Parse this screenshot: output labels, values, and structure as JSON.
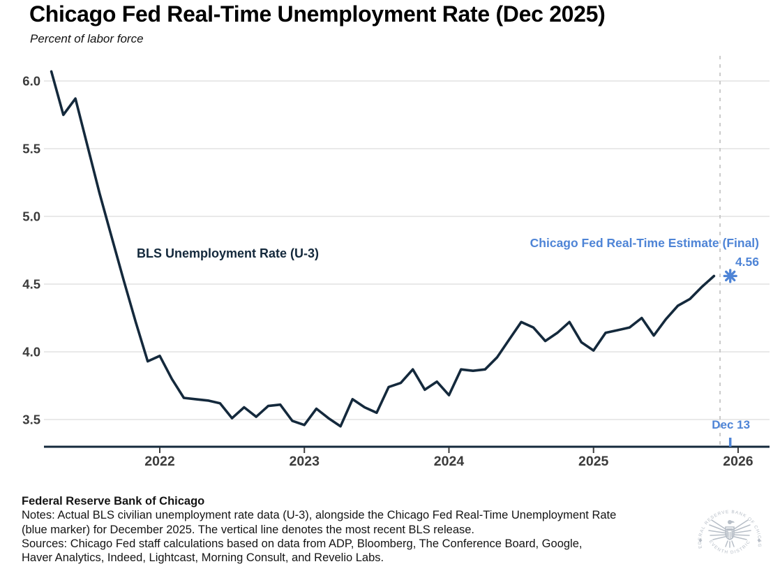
{
  "header": {
    "title": "Chicago Fed Real-Time Unemployment Rate (Dec 2025)",
    "subtitle": "Percent of labor force"
  },
  "chart_data": {
    "type": "line",
    "title": "Chicago Fed Real-Time Unemployment Rate (Dec 2025)",
    "subtitle": "Percent of labor force",
    "ylabel": "Percent of labor force",
    "ylim": [
      3.3,
      6.15
    ],
    "grid": "horizontal",
    "y_ticks": [
      "3.5",
      "4.0",
      "4.5",
      "5.0",
      "5.5",
      "6.0"
    ],
    "x_ticks": [
      {
        "label": "2022",
        "month_index": 9
      },
      {
        "label": "2023",
        "month_index": 21
      },
      {
        "label": "2024",
        "month_index": 33
      },
      {
        "label": "2025",
        "month_index": 45
      },
      {
        "label": "2026",
        "month_index": 57
      }
    ],
    "series": [
      {
        "name": "BLS Unemployment Rate (U-3)",
        "color": "#14293c",
        "frequency": "monthly",
        "start_month": "2021-04",
        "end_month": "2025-11",
        "values": [
          6.07,
          5.75,
          5.87,
          5.52,
          5.17,
          4.85,
          4.53,
          4.22,
          3.93,
          3.97,
          3.8,
          3.66,
          3.65,
          3.64,
          3.62,
          3.51,
          3.59,
          3.52,
          3.6,
          3.61,
          3.49,
          3.46,
          3.58,
          3.51,
          3.45,
          3.65,
          3.59,
          3.55,
          3.74,
          3.77,
          3.87,
          3.72,
          3.78,
          3.68,
          3.87,
          3.86,
          3.87,
          3.96,
          4.09,
          4.22,
          4.18,
          4.08,
          4.14,
          4.22,
          4.07,
          4.01,
          4.14,
          4.16,
          4.18,
          4.25,
          4.12,
          4.24,
          4.34,
          4.39,
          4.48,
          4.56
        ]
      }
    ],
    "marker": {
      "label": "Chicago Fed Real-Time Estimate (Final)",
      "value_label": "4.56",
      "value": 4.56,
      "month": "2025-12",
      "month_index": 56,
      "color": "#4e84d6",
      "shape": "asterisk"
    },
    "release_line": {
      "label": "Dec 13",
      "month_index": 55.5,
      "style": "dashed"
    },
    "annotations": {
      "series_label": "BLS Unemployment Rate (U-3)",
      "estimate_label": "Chicago Fed Real-Time Estimate (Final)",
      "estimate_value": "4.56",
      "release_label": "Dec 13"
    }
  },
  "footer": {
    "org": "Federal Reserve Bank of Chicago",
    "notes_line1": "Notes: Actual BLS civilian unemployment rate data (U-3), alongside the Chicago Fed Real-Time Unemployment Rate",
    "notes_line2": "(blue marker) for December 2025. The vertical line denotes the most recent BLS release.",
    "sources_line1": "Sources: Chicago Fed staff calculations based on data from ADP, Bloomberg, The Conference Board, Google,",
    "sources_line2": "Haver Analytics, Indeed, Lightcast, Morning Consult, and Revelio Labs.",
    "seal": {
      "top_text": "FEDERAL RESERVE BANK OF CHICAGO",
      "bottom_text": "SEVENTH DISTRICT"
    }
  },
  "colors": {
    "line_navy": "#14293c",
    "accent_blue": "#4e84d6",
    "gridline": "#dcdcdc",
    "dashed_line": "#c5c5c5",
    "tick_text": "#3b3b3b",
    "seal_gray": "#b7bec7"
  }
}
